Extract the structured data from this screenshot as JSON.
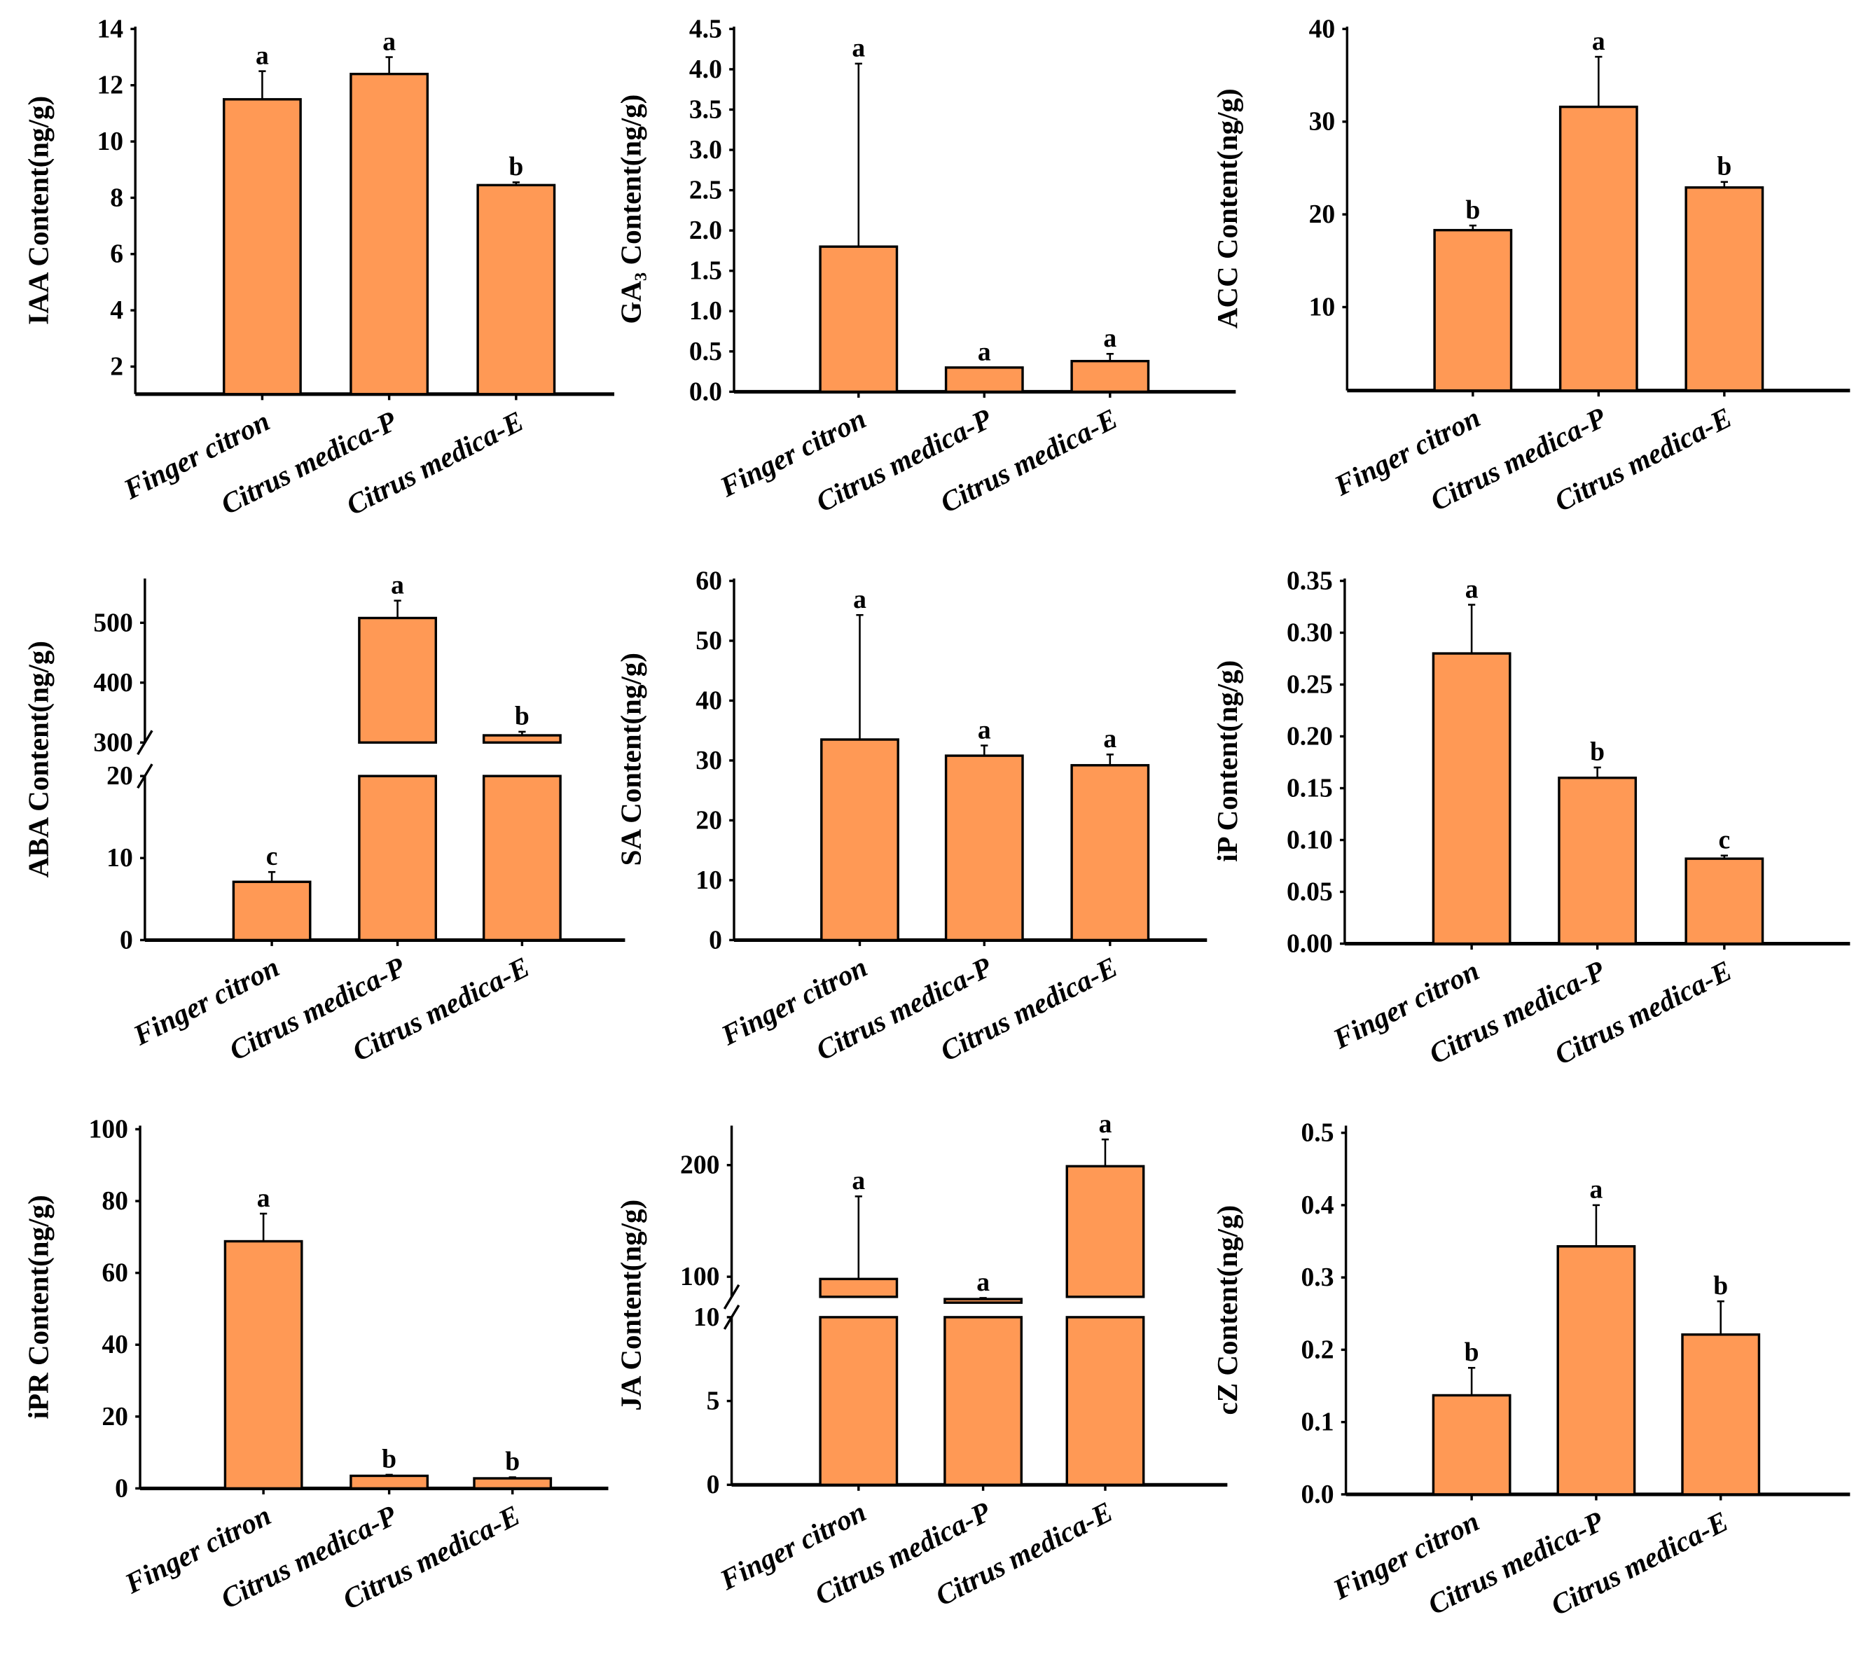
{
  "colors": {
    "bar": "#FF9955",
    "edge": "#000000"
  },
  "chart_data": [
    {
      "type": "bar",
      "id": "iaa",
      "ylabel": "IAA Content(ng/g)",
      "categories": [
        "Finger citron",
        "Citrus medica-P",
        "Citrus medica-E"
      ],
      "values": [
        11.5,
        12.4,
        8.45
      ],
      "error_upper": [
        12.5,
        13.0,
        8.55
      ],
      "letters": [
        "a",
        "a",
        "b"
      ],
      "ylim": [
        1,
        14
      ],
      "yticks": [
        "2",
        "4",
        "6",
        "8",
        "10",
        "12",
        "14"
      ]
    },
    {
      "type": "bar",
      "id": "ga3",
      "ylabel": "GA₃ Content(ng/g)",
      "categories": [
        "Finger citron",
        "Citrus medica-P",
        "Citrus medica-E"
      ],
      "values": [
        1.8,
        0.3,
        0.38
      ],
      "error_upper": [
        4.07,
        0.3,
        0.47
      ],
      "letters": [
        "a",
        "a",
        "a"
      ],
      "ylim": [
        0,
        4.5
      ],
      "yticks": [
        "0.0",
        "0.5",
        "1.0",
        "1.5",
        "2.0",
        "2.5",
        "3.0",
        "3.5",
        "4.0",
        "4.5"
      ]
    },
    {
      "type": "bar",
      "id": "acc",
      "ylabel": "ACC Content(ng/g)",
      "categories": [
        "Finger citron",
        "Citrus medica-P",
        "Citrus medica-E"
      ],
      "values": [
        18.3,
        31.6,
        22.9
      ],
      "error_upper": [
        18.8,
        37.0,
        23.5
      ],
      "letters": [
        "b",
        "a",
        "b"
      ],
      "ylim": [
        1,
        40
      ],
      "yticks": [
        "10",
        "20",
        "30",
        "40"
      ]
    },
    {
      "type": "bar",
      "id": "aba",
      "ylabel": "ABA Content(ng/g)",
      "categories": [
        "Finger citron",
        "Citrus medica-P",
        "Citrus medica-E"
      ],
      "values": [
        7.1,
        508,
        312
      ],
      "error_upper": [
        8.3,
        537,
        318
      ],
      "letters": [
        "c",
        "a",
        "b"
      ],
      "ylim": [
        0,
        570
      ],
      "axis_break": [
        20,
        300
      ],
      "yticks": [
        "0",
        "10",
        "20",
        "300",
        "400",
        "500"
      ]
    },
    {
      "type": "bar",
      "id": "sa",
      "ylabel": "SA Content(ng/g)",
      "categories": [
        "Finger citron",
        "Citrus medica-P",
        "Citrus medica-E"
      ],
      "values": [
        33.5,
        30.8,
        29.2
      ],
      "error_upper": [
        54.3,
        32.5,
        31.0
      ],
      "letters": [
        "a",
        "a",
        "a"
      ],
      "ylim": [
        0,
        60
      ],
      "yticks": [
        "0",
        "10",
        "20",
        "30",
        "40",
        "50",
        "60"
      ]
    },
    {
      "type": "bar",
      "id": "ip",
      "ylabel": "iP Content(ng/g)",
      "categories": [
        "Finger citron",
        "Citrus medica-P",
        "Citrus medica-E"
      ],
      "values": [
        0.28,
        0.16,
        0.082
      ],
      "error_upper": [
        0.327,
        0.17,
        0.085
      ],
      "letters": [
        "a",
        "b",
        "c"
      ],
      "ylim": [
        0,
        0.35
      ],
      "yticks": [
        "0.00",
        "0.05",
        "0.10",
        "0.15",
        "0.20",
        "0.25",
        "0.30",
        "0.35"
      ]
    },
    {
      "type": "bar",
      "id": "ipr",
      "ylabel": "iPR Content(ng/g)",
      "categories": [
        "Finger citron",
        "Citrus medica-P",
        "Citrus medica-E"
      ],
      "values": [
        68.8,
        3.5,
        2.8
      ],
      "error_upper": [
        76.5,
        3.8,
        3.1
      ],
      "letters": [
        "a",
        "b",
        "b"
      ],
      "ylim": [
        0,
        100
      ],
      "yticks": [
        "0",
        "20",
        "40",
        "60",
        "80",
        "100"
      ]
    },
    {
      "type": "bar",
      "id": "ja",
      "ylabel": "JA Content(ng/g)",
      "categories": [
        "Finger citron",
        "Citrus medica-P",
        "Citrus medica-E"
      ],
      "values": [
        98,
        80,
        199
      ],
      "error_upper": [
        172,
        81,
        223
      ],
      "letters": [
        "a",
        "a",
        "a"
      ],
      "ylim": [
        0,
        230
      ],
      "axis_break": [
        10,
        82
      ],
      "yticks": [
        "0",
        "5",
        "10",
        "100",
        "200"
      ]
    },
    {
      "type": "bar",
      "id": "cz",
      "ylabel": "cZ Content(ng/g)",
      "categories": [
        "Finger citron",
        "Citrus medica-P",
        "Citrus medica-E"
      ],
      "values": [
        0.137,
        0.343,
        0.221
      ],
      "error_upper": [
        0.175,
        0.4,
        0.267
      ],
      "letters": [
        "b",
        "a",
        "b"
      ],
      "ylim": [
        0,
        0.5
      ],
      "yticks": [
        "0.0",
        "0.1",
        "0.2",
        "0.3",
        "0.4",
        "0.5"
      ]
    }
  ]
}
